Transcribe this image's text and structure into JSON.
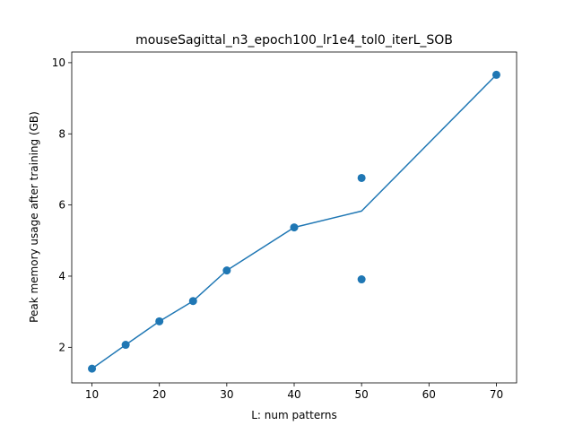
{
  "chart_data": {
    "type": "scatter",
    "title": "mouseSagittal_n3_epoch100_lr1e4_tol0_iterL_SOB",
    "xlabel": "L: num patterns",
    "ylabel": "Peak memory usage after training (GB)",
    "xlim": [
      7,
      73
    ],
    "ylim": [
      1.0,
      10.3
    ],
    "x_ticks": [
      10,
      20,
      30,
      40,
      50,
      60,
      70
    ],
    "y_ticks": [
      2,
      4,
      6,
      8,
      10
    ],
    "grid": false,
    "color": "#1f77b4",
    "points": [
      {
        "x": 10,
        "y": 1.4
      },
      {
        "x": 15,
        "y": 2.07
      },
      {
        "x": 20,
        "y": 2.73
      },
      {
        "x": 25,
        "y": 3.3
      },
      {
        "x": 30,
        "y": 4.16
      },
      {
        "x": 40,
        "y": 5.37
      },
      {
        "x": 50,
        "y": 6.76
      },
      {
        "x": 50,
        "y": 3.91
      },
      {
        "x": 70,
        "y": 9.66
      }
    ],
    "line": [
      {
        "x": 10,
        "y": 1.4
      },
      {
        "x": 15,
        "y": 2.07
      },
      {
        "x": 20,
        "y": 2.73
      },
      {
        "x": 25,
        "y": 3.3
      },
      {
        "x": 30,
        "y": 4.16
      },
      {
        "x": 40,
        "y": 5.37
      },
      {
        "x": 50,
        "y": 5.83
      },
      {
        "x": 70,
        "y": 9.66
      }
    ]
  }
}
